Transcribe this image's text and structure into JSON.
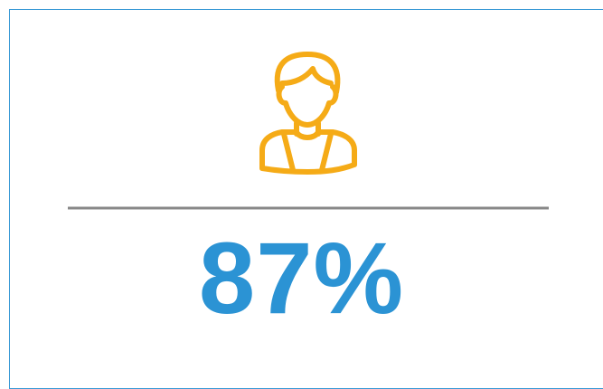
{
  "stat": "87%"
}
